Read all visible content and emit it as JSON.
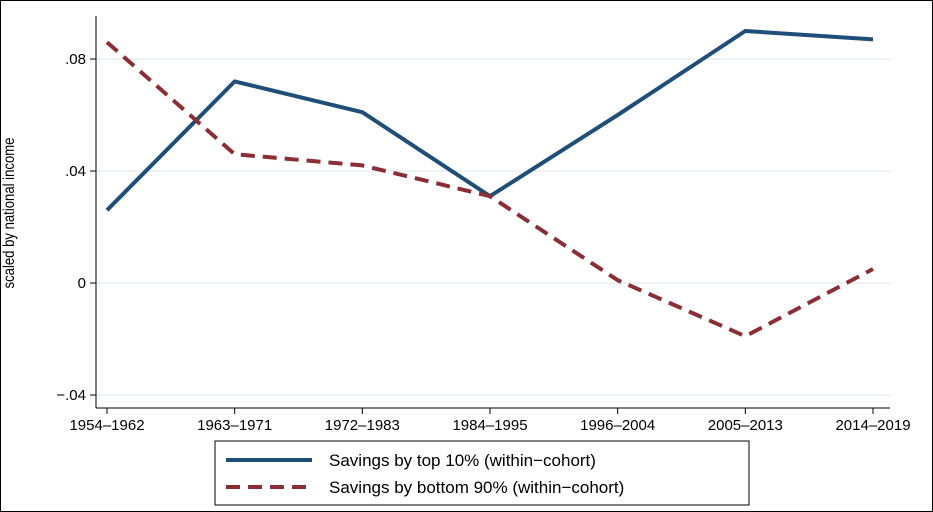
{
  "chart_data": {
    "type": "line",
    "title": "",
    "xlabel": "",
    "ylabel": "scaled by national income",
    "categories": [
      "1954–1962",
      "1963–1971",
      "1972–1983",
      "1984–1995",
      "1996–2004",
      "2005–2013",
      "2014–2019"
    ],
    "y_ticks": [
      -0.04,
      0,
      0.04,
      0.08
    ],
    "y_tick_labels": [
      "−.04",
      "0",
      ".04",
      ".08"
    ],
    "ylim": [
      -0.04,
      0.095
    ],
    "grid": "horizontal",
    "legend_position": "bottom",
    "series": [
      {
        "name": "Savings by top 10% (within−cohort)",
        "color": "#1f4e79",
        "dash": "solid",
        "values": [
          0.026,
          0.072,
          0.061,
          0.031,
          0.06,
          0.09,
          0.087
        ]
      },
      {
        "name": "Savings by bottom 90% (within−cohort)",
        "color": "#8b2d35",
        "dash": "dashed",
        "values": [
          0.086,
          0.046,
          0.042,
          0.031,
          0.001,
          -0.019,
          0.005
        ]
      }
    ]
  }
}
